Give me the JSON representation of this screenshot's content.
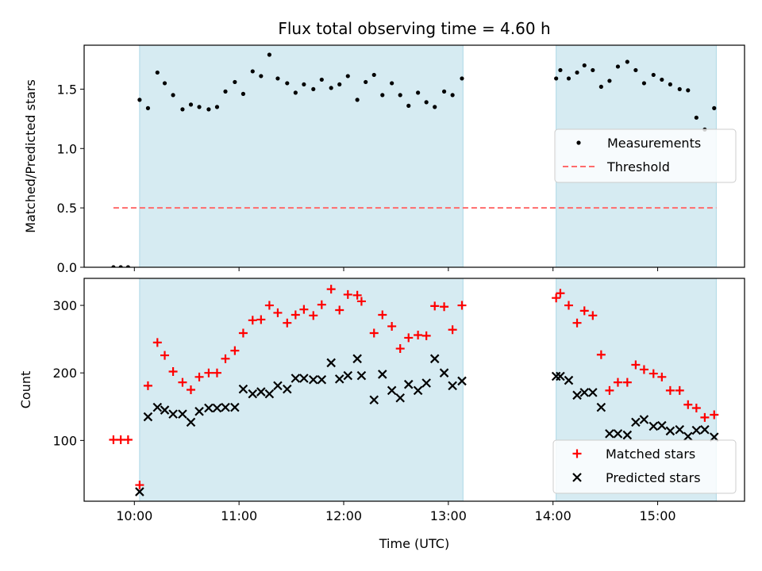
{
  "chart_data": {
    "title": "Flux total observing time = 4.60 h",
    "xlabel": "Time (UTC)",
    "x_ticks": [
      "10:00",
      "11:00",
      "12:00",
      "13:00",
      "14:00",
      "15:00"
    ],
    "x_unit": "hours UTC",
    "xlim": [
      9.52,
      15.83
    ],
    "observing_windows": [
      [
        10.05,
        13.14
      ],
      [
        14.03,
        15.56
      ]
    ],
    "window_color": "#add8e6",
    "panels": [
      {
        "type": "scatter",
        "ylabel": "Matched/Predicted stars",
        "ylim": [
          0,
          1.87
        ],
        "y_ticks": [
          "0.0",
          "0.5",
          "1.0",
          "1.5"
        ],
        "legend_position": "right",
        "series": [
          {
            "name": "Measurements",
            "marker": "dot",
            "color": "#000000",
            "points": [
              [
                9.8,
                0
              ],
              [
                9.87,
                0
              ],
              [
                9.94,
                0
              ],
              [
                10.05,
                1.41
              ],
              [
                10.13,
                1.34
              ],
              [
                10.22,
                1.64
              ],
              [
                10.29,
                1.55
              ],
              [
                10.37,
                1.45
              ],
              [
                10.46,
                1.33
              ],
              [
                10.54,
                1.37
              ],
              [
                10.62,
                1.35
              ],
              [
                10.71,
                1.33
              ],
              [
                10.79,
                1.35
              ],
              [
                10.87,
                1.48
              ],
              [
                10.96,
                1.56
              ],
              [
                11.04,
                1.46
              ],
              [
                11.13,
                1.65
              ],
              [
                11.21,
                1.61
              ],
              [
                11.29,
                1.79
              ],
              [
                11.37,
                1.59
              ],
              [
                11.46,
                1.55
              ],
              [
                11.54,
                1.47
              ],
              [
                11.62,
                1.54
              ],
              [
                11.71,
                1.5
              ],
              [
                11.79,
                1.58
              ],
              [
                11.88,
                1.51
              ],
              [
                11.96,
                1.54
              ],
              [
                12.04,
                1.61
              ],
              [
                12.13,
                1.41
              ],
              [
                12.21,
                1.56
              ],
              [
                12.29,
                1.62
              ],
              [
                12.37,
                1.45
              ],
              [
                12.46,
                1.55
              ],
              [
                12.54,
                1.45
              ],
              [
                12.62,
                1.36
              ],
              [
                12.71,
                1.47
              ],
              [
                12.79,
                1.39
              ],
              [
                12.87,
                1.35
              ],
              [
                12.96,
                1.48
              ],
              [
                13.04,
                1.45
              ],
              [
                13.13,
                1.59
              ],
              [
                14.03,
                1.59
              ],
              [
                14.07,
                1.66
              ],
              [
                14.15,
                1.59
              ],
              [
                14.23,
                1.64
              ],
              [
                14.3,
                1.7
              ],
              [
                14.38,
                1.66
              ],
              [
                14.46,
                1.52
              ],
              [
                14.54,
                1.57
              ],
              [
                14.62,
                1.69
              ],
              [
                14.71,
                1.73
              ],
              [
                14.79,
                1.66
              ],
              [
                14.87,
                1.55
              ],
              [
                14.96,
                1.62
              ],
              [
                15.04,
                1.58
              ],
              [
                15.12,
                1.54
              ],
              [
                15.21,
                1.5
              ],
              [
                15.29,
                1.49
              ],
              [
                15.37,
                1.26
              ],
              [
                15.45,
                1.16
              ],
              [
                15.54,
                1.34
              ]
            ]
          },
          {
            "name": "Threshold",
            "type": "line",
            "style": "dashed",
            "color": "#ff6b6b",
            "x": [
              9.8,
              15.56
            ],
            "y": [
              0.5,
              0.5
            ]
          }
        ]
      },
      {
        "type": "scatter",
        "ylabel": "Count",
        "ylim": [
          10,
          340
        ],
        "y_ticks": [
          "100",
          "200",
          "300"
        ],
        "legend_position": "bottom-right",
        "series": [
          {
            "name": "Matched stars",
            "marker": "plus",
            "color": "#ff0000",
            "points": [
              [
                9.8,
                101
              ],
              [
                9.87,
                101
              ],
              [
                9.94,
                101
              ],
              [
                10.05,
                34
              ],
              [
                10.13,
                181
              ],
              [
                10.22,
                245
              ],
              [
                10.29,
                226
              ],
              [
                10.37,
                202
              ],
              [
                10.46,
                186
              ],
              [
                10.54,
                175
              ],
              [
                10.62,
                194
              ],
              [
                10.71,
                200
              ],
              [
                10.79,
                200
              ],
              [
                10.87,
                221
              ],
              [
                10.96,
                233
              ],
              [
                11.04,
                259
              ],
              [
                11.13,
                278
              ],
              [
                11.21,
                279
              ],
              [
                11.29,
                300
              ],
              [
                11.37,
                289
              ],
              [
                11.46,
                274
              ],
              [
                11.54,
                286
              ],
              [
                11.62,
                294
              ],
              [
                11.71,
                285
              ],
              [
                11.79,
                301
              ],
              [
                11.88,
                324
              ],
              [
                11.96,
                293
              ],
              [
                12.04,
                316
              ],
              [
                12.13,
                315
              ],
              [
                12.17,
                306
              ],
              [
                12.29,
                259
              ],
              [
                12.37,
                286
              ],
              [
                12.46,
                269
              ],
              [
                12.54,
                236
              ],
              [
                12.62,
                252
              ],
              [
                12.71,
                256
              ],
              [
                12.79,
                255
              ],
              [
                12.87,
                299
              ],
              [
                12.96,
                298
              ],
              [
                13.04,
                264
              ],
              [
                13.13,
                300
              ],
              [
                14.03,
                311
              ],
              [
                14.07,
                318
              ],
              [
                14.15,
                300
              ],
              [
                14.23,
                274
              ],
              [
                14.3,
                292
              ],
              [
                14.38,
                285
              ],
              [
                14.46,
                227
              ],
              [
                14.54,
                174
              ],
              [
                14.62,
                186
              ],
              [
                14.71,
                186
              ],
              [
                14.79,
                212
              ],
              [
                14.87,
                205
              ],
              [
                14.96,
                199
              ],
              [
                15.04,
                194
              ],
              [
                15.12,
                174
              ],
              [
                15.21,
                174
              ],
              [
                15.29,
                153
              ],
              [
                15.37,
                148
              ],
              [
                15.45,
                134
              ],
              [
                15.54,
                138
              ]
            ]
          },
          {
            "name": "Predicted stars",
            "marker": "x",
            "color": "#000000",
            "points": [
              [
                10.05,
                24
              ],
              [
                10.13,
                135
              ],
              [
                10.22,
                149
              ],
              [
                10.29,
                145
              ],
              [
                10.37,
                139
              ],
              [
                10.46,
                139
              ],
              [
                10.54,
                127
              ],
              [
                10.62,
                143
              ],
              [
                10.71,
                148
              ],
              [
                10.79,
                148
              ],
              [
                10.87,
                149
              ],
              [
                10.96,
                149
              ],
              [
                11.04,
                176
              ],
              [
                11.13,
                169
              ],
              [
                11.21,
                172
              ],
              [
                11.29,
                169
              ],
              [
                11.37,
                181
              ],
              [
                11.46,
                176
              ],
              [
                11.54,
                192
              ],
              [
                11.62,
                192
              ],
              [
                11.71,
                190
              ],
              [
                11.79,
                190
              ],
              [
                11.88,
                215
              ],
              [
                11.96,
                191
              ],
              [
                12.04,
                196
              ],
              [
                12.13,
                221
              ],
              [
                12.17,
                196
              ],
              [
                12.29,
                160
              ],
              [
                12.37,
                198
              ],
              [
                12.46,
                174
              ],
              [
                12.54,
                163
              ],
              [
                12.62,
                183
              ],
              [
                12.71,
                174
              ],
              [
                12.79,
                185
              ],
              [
                12.87,
                221
              ],
              [
                12.96,
                200
              ],
              [
                13.04,
                181
              ],
              [
                13.13,
                188
              ],
              [
                14.03,
                195
              ],
              [
                14.07,
                195
              ],
              [
                14.15,
                189
              ],
              [
                14.23,
                167
              ],
              [
                14.3,
                171
              ],
              [
                14.38,
                171
              ],
              [
                14.46,
                149
              ],
              [
                14.54,
                110
              ],
              [
                14.62,
                110
              ],
              [
                14.71,
                108
              ],
              [
                14.79,
                127
              ],
              [
                14.87,
                131
              ],
              [
                14.96,
                121
              ],
              [
                15.04,
                122
              ],
              [
                15.12,
                114
              ],
              [
                15.21,
                116
              ],
              [
                15.29,
                106
              ],
              [
                15.37,
                115
              ],
              [
                15.45,
                116
              ],
              [
                15.54,
                105
              ]
            ]
          }
        ]
      }
    ]
  }
}
